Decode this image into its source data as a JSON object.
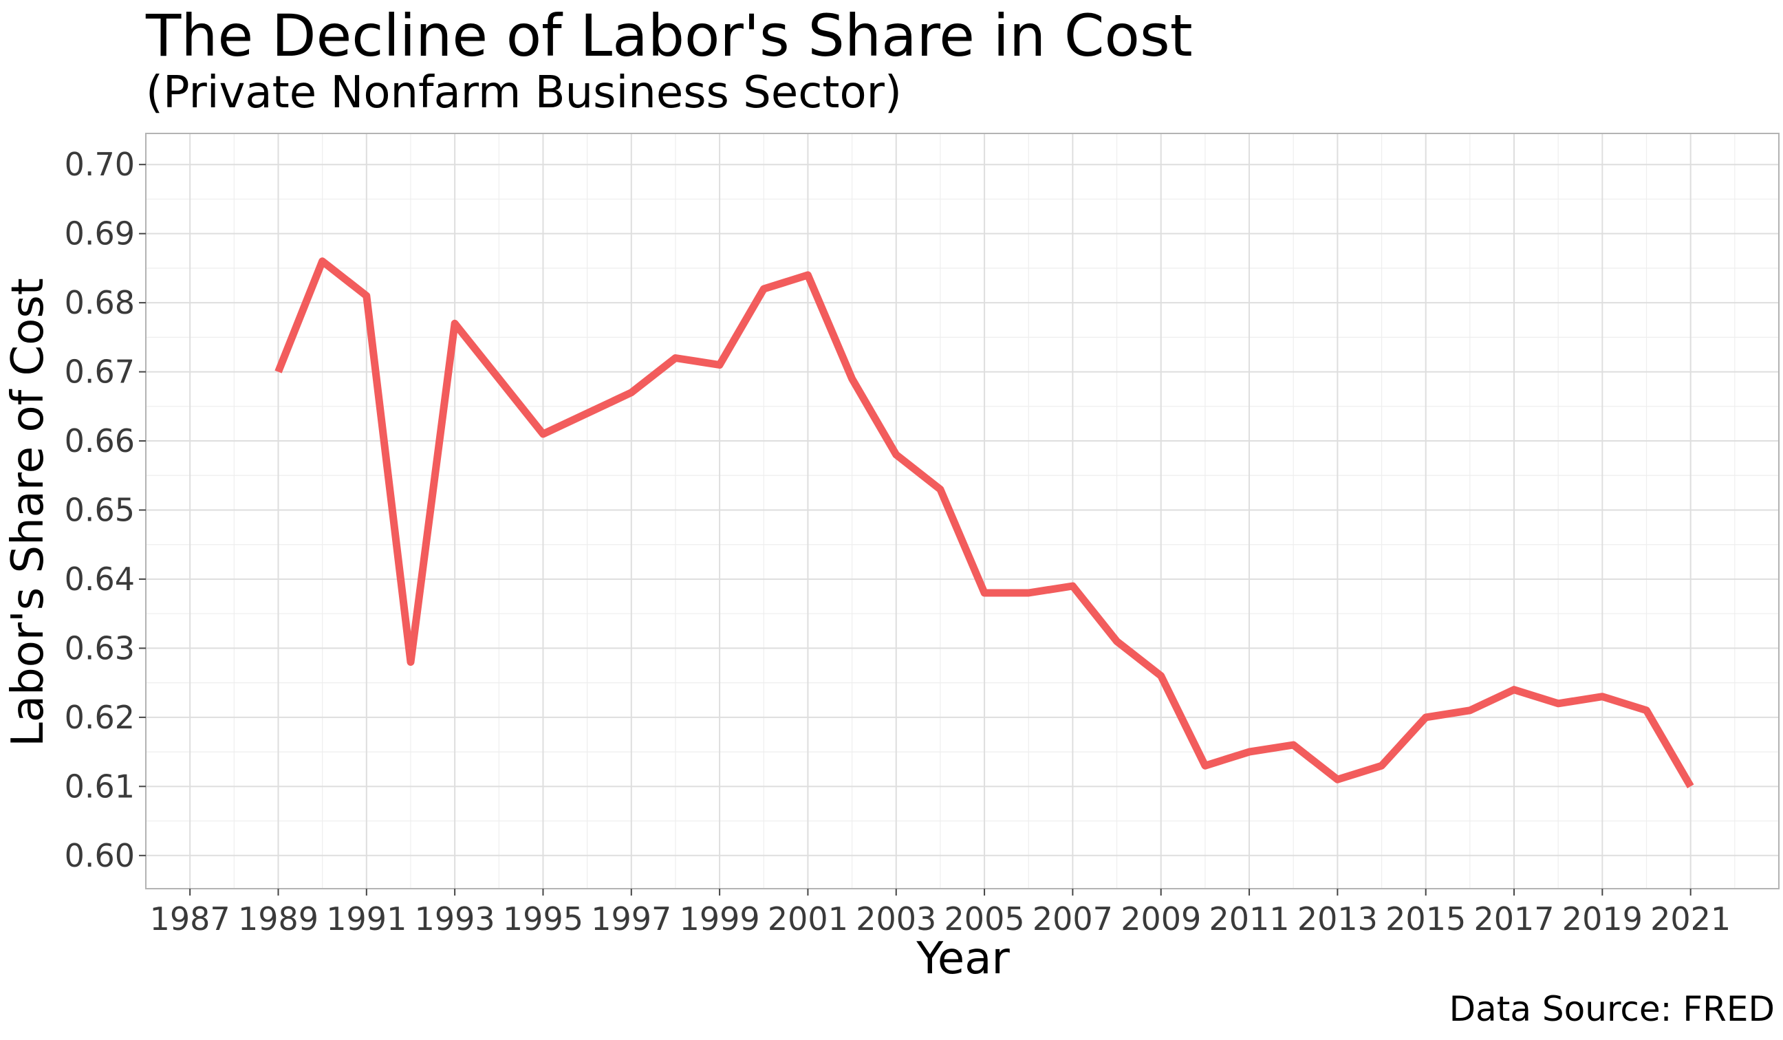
{
  "title": "The Decline of Labor's Share in Cost",
  "subtitle": "(Private Nonfarm Business Sector)",
  "caption": "Data Source: FRED",
  "chart_data": {
    "type": "line",
    "title": "The Decline of Labor's Share in Cost",
    "subtitle": "(Private Nonfarm Business Sector)",
    "xlabel": "Year",
    "ylabel": "Labor's Share of Cost",
    "xlim": [
      1986,
      2023
    ],
    "ylim": [
      0.5952,
      0.7045
    ],
    "x_ticks": [
      1987,
      1989,
      1991,
      1993,
      1995,
      1997,
      1999,
      2001,
      2003,
      2005,
      2007,
      2009,
      2011,
      2013,
      2015,
      2017,
      2019,
      2021
    ],
    "y_ticks": [
      0.6,
      0.61,
      0.62,
      0.63,
      0.64,
      0.65,
      0.66,
      0.67,
      0.68,
      0.69,
      0.7
    ],
    "y_tick_labels": [
      "0.60",
      "0.61",
      "0.62",
      "0.63",
      "0.64",
      "0.65",
      "0.66",
      "0.67",
      "0.68",
      "0.69",
      "0.70"
    ],
    "grid": true,
    "line_color": "#F25C5C",
    "series": [
      {
        "x": [
          1989,
          1990,
          1991,
          1992,
          1993,
          1994,
          1995,
          1996,
          1997,
          1998,
          1999,
          2000,
          2001,
          2002,
          2003,
          2004,
          2005,
          2006,
          2007,
          2008,
          2009,
          2010,
          2011,
          2012,
          2013,
          2014,
          2015,
          2016,
          2017,
          2018,
          2019,
          2020,
          2021
        ],
        "values": [
          0.67,
          0.686,
          0.681,
          0.628,
          0.677,
          0.669,
          0.661,
          0.664,
          0.667,
          0.672,
          0.671,
          0.682,
          0.684,
          0.669,
          0.658,
          0.653,
          0.638,
          0.638,
          0.639,
          0.631,
          0.626,
          0.613,
          0.615,
          0.616,
          0.611,
          0.613,
          0.62,
          0.621,
          0.624,
          0.622,
          0.623,
          0.621,
          0.61
        ]
      }
    ]
  }
}
